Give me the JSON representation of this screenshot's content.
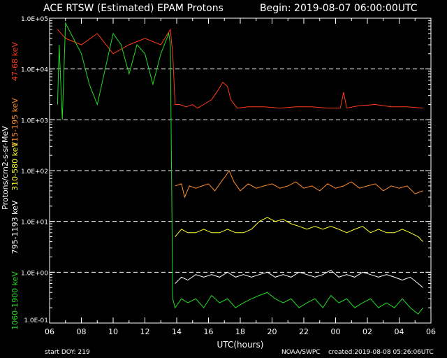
{
  "header": {
    "title": "ACE RTSW (Estimated) EPAM Protons",
    "begin": "Begin: 2019-08-07 06:00:00UTC"
  },
  "footer": {
    "start_doy": "start DOY:  219",
    "source": "NOAA/SWPC",
    "created": "created:2019-08-08 05:26:06UTC"
  },
  "chart_data": {
    "type": "line",
    "xlabel": "UTC(hours)",
    "ylabel": "Protons/cm2-s-sr-MeV",
    "y_scale": "log",
    "ylim": [
      0.1,
      100000
    ],
    "xlim_hours": [
      0,
      24
    ],
    "x_tick_labels": [
      "06",
      "08",
      "10",
      "12",
      "14",
      "16",
      "18",
      "20",
      "22",
      "00",
      "02",
      "04",
      "06"
    ],
    "y_tick_labels": [
      "1.0E-01",
      "1.0E+00",
      "1.0E+01",
      "1.0E+02",
      "1.0E+03",
      "1.0E+04",
      "1.0E+05"
    ],
    "grid": "dashed horizontal at each decade",
    "colors": {
      "background": "#000000",
      "axes": "#ffffff",
      "s47": "#ff3a1a",
      "s115": "#ff8c2a",
      "s310": "#ffff2a",
      "s795": "#ffffff",
      "s1060": "#22dd22"
    },
    "series": [
      {
        "name": "47-68 keV",
        "color": "#ff3a1a",
        "points": [
          [
            0.5,
            60000
          ],
          [
            1.0,
            40000
          ],
          [
            2.0,
            30000
          ],
          [
            3.0,
            50000
          ],
          [
            4.0,
            20000
          ],
          [
            5.0,
            30000
          ],
          [
            6.0,
            40000
          ],
          [
            7.0,
            30000
          ],
          [
            7.6,
            60000
          ],
          [
            7.75,
            20000
          ],
          [
            7.9,
            2000
          ],
          [
            8.2,
            2000
          ],
          [
            8.6,
            1800
          ],
          [
            9.0,
            2000
          ],
          [
            9.3,
            1700
          ],
          [
            9.7,
            2000
          ],
          [
            10.2,
            2500
          ],
          [
            10.6,
            3800
          ],
          [
            10.9,
            5500
          ],
          [
            11.2,
            4500
          ],
          [
            11.4,
            2500
          ],
          [
            11.8,
            1700
          ],
          [
            12.5,
            1800
          ],
          [
            13.5,
            1800
          ],
          [
            14.5,
            1700
          ],
          [
            15.5,
            1800
          ],
          [
            16.5,
            1800
          ],
          [
            17.5,
            1700
          ],
          [
            18.3,
            1700
          ],
          [
            18.5,
            3500
          ],
          [
            18.7,
            1700
          ],
          [
            19.5,
            1900
          ],
          [
            20.5,
            2000
          ],
          [
            21.5,
            1800
          ],
          [
            22.5,
            1800
          ],
          [
            23.5,
            1700
          ]
        ]
      },
      {
        "name": "115-195 keV",
        "color": "#ff8c2a",
        "points": [
          [
            7.9,
            50
          ],
          [
            8.3,
            55
          ],
          [
            8.5,
            30
          ],
          [
            8.8,
            50
          ],
          [
            9.2,
            45
          ],
          [
            9.6,
            50
          ],
          [
            10.0,
            55
          ],
          [
            10.4,
            40
          ],
          [
            10.8,
            60
          ],
          [
            11.1,
            80
          ],
          [
            11.3,
            100
          ],
          [
            11.6,
            60
          ],
          [
            12.0,
            40
          ],
          [
            12.5,
            55
          ],
          [
            13.0,
            45
          ],
          [
            13.5,
            50
          ],
          [
            14.0,
            55
          ],
          [
            14.5,
            45
          ],
          [
            15.0,
            50
          ],
          [
            15.5,
            60
          ],
          [
            16.0,
            45
          ],
          [
            16.5,
            50
          ],
          [
            17.0,
            40
          ],
          [
            17.5,
            55
          ],
          [
            18.0,
            45
          ],
          [
            18.5,
            50
          ],
          [
            19.0,
            60
          ],
          [
            19.5,
            45
          ],
          [
            20.0,
            50
          ],
          [
            20.5,
            55
          ],
          [
            21.0,
            40
          ],
          [
            21.5,
            50
          ],
          [
            22.0,
            45
          ],
          [
            22.5,
            50
          ],
          [
            23.0,
            35
          ],
          [
            23.5,
            40
          ]
        ]
      },
      {
        "name": "310-580 keV",
        "color": "#ffff2a",
        "points": [
          [
            7.9,
            5
          ],
          [
            8.3,
            7
          ],
          [
            8.7,
            6
          ],
          [
            9.2,
            6
          ],
          [
            9.7,
            7
          ],
          [
            10.2,
            6
          ],
          [
            10.7,
            6
          ],
          [
            11.2,
            7
          ],
          [
            11.7,
            6
          ],
          [
            12.2,
            6
          ],
          [
            12.7,
            7
          ],
          [
            13.2,
            10
          ],
          [
            13.7,
            12
          ],
          [
            14.2,
            10
          ],
          [
            14.7,
            11
          ],
          [
            15.2,
            9
          ],
          [
            15.7,
            8
          ],
          [
            16.2,
            7
          ],
          [
            16.7,
            8
          ],
          [
            17.2,
            7
          ],
          [
            17.7,
            8
          ],
          [
            18.2,
            7
          ],
          [
            18.7,
            6
          ],
          [
            19.2,
            7
          ],
          [
            19.7,
            8
          ],
          [
            20.2,
            6
          ],
          [
            20.7,
            7
          ],
          [
            21.2,
            6
          ],
          [
            21.7,
            6
          ],
          [
            22.2,
            7
          ],
          [
            22.7,
            6
          ],
          [
            23.2,
            5
          ],
          [
            23.5,
            4
          ]
        ]
      },
      {
        "name": "795-1193 keV",
        "color": "#ffffff",
        "points": [
          [
            7.9,
            0.6
          ],
          [
            8.3,
            0.8
          ],
          [
            8.7,
            0.7
          ],
          [
            9.2,
            0.9
          ],
          [
            9.7,
            0.8
          ],
          [
            10.2,
            0.9
          ],
          [
            10.7,
            0.8
          ],
          [
            11.2,
            1.0
          ],
          [
            11.7,
            0.8
          ],
          [
            12.2,
            0.9
          ],
          [
            12.7,
            0.8
          ],
          [
            13.2,
            0.9
          ],
          [
            13.7,
            1.0
          ],
          [
            14.2,
            0.8
          ],
          [
            14.7,
            0.9
          ],
          [
            15.2,
            0.8
          ],
          [
            15.7,
            1.0
          ],
          [
            16.2,
            0.9
          ],
          [
            16.7,
            0.8
          ],
          [
            17.2,
            0.9
          ],
          [
            17.7,
            1.1
          ],
          [
            18.2,
            0.8
          ],
          [
            18.7,
            0.9
          ],
          [
            19.2,
            0.8
          ],
          [
            19.7,
            1.0
          ],
          [
            20.2,
            0.9
          ],
          [
            20.7,
            0.8
          ],
          [
            21.2,
            0.9
          ],
          [
            21.7,
            0.8
          ],
          [
            22.2,
            0.7
          ],
          [
            22.7,
            0.8
          ],
          [
            23.2,
            0.6
          ],
          [
            23.5,
            0.5
          ]
        ]
      },
      {
        "name": "1060-1900 keV",
        "color": "#22dd22",
        "points": [
          [
            0.5,
            2000
          ],
          [
            0.6,
            30000
          ],
          [
            0.8,
            1000
          ],
          [
            1.0,
            80000
          ],
          [
            1.5,
            40000
          ],
          [
            2.0,
            20000
          ],
          [
            2.5,
            5000
          ],
          [
            3.0,
            2000
          ],
          [
            3.5,
            10000
          ],
          [
            4.0,
            50000
          ],
          [
            4.5,
            30000
          ],
          [
            5.0,
            8000
          ],
          [
            5.5,
            30000
          ],
          [
            6.0,
            20000
          ],
          [
            6.5,
            5000
          ],
          [
            7.0,
            20000
          ],
          [
            7.5,
            50000
          ],
          [
            7.6,
            30000
          ],
          [
            7.75,
            0.3
          ],
          [
            7.9,
            0.2
          ],
          [
            8.3,
            0.3
          ],
          [
            8.7,
            0.25
          ],
          [
            9.2,
            0.3
          ],
          [
            9.7,
            0.2
          ],
          [
            10.2,
            0.35
          ],
          [
            10.7,
            0.25
          ],
          [
            11.2,
            0.3
          ],
          [
            11.7,
            0.2
          ],
          [
            12.2,
            0.25
          ],
          [
            12.7,
            0.3
          ],
          [
            13.2,
            0.35
          ],
          [
            13.7,
            0.4
          ],
          [
            14.2,
            0.3
          ],
          [
            14.7,
            0.25
          ],
          [
            15.2,
            0.3
          ],
          [
            15.7,
            0.2
          ],
          [
            16.2,
            0.25
          ],
          [
            16.7,
            0.3
          ],
          [
            17.2,
            0.2
          ],
          [
            17.7,
            0.35
          ],
          [
            18.2,
            0.25
          ],
          [
            18.7,
            0.3
          ],
          [
            19.2,
            0.2
          ],
          [
            19.7,
            0.25
          ],
          [
            20.2,
            0.3
          ],
          [
            20.7,
            0.2
          ],
          [
            21.2,
            0.25
          ],
          [
            21.7,
            0.2
          ],
          [
            22.2,
            0.3
          ],
          [
            22.7,
            0.2
          ],
          [
            23.2,
            0.15
          ],
          [
            23.5,
            0.2
          ]
        ]
      }
    ]
  }
}
